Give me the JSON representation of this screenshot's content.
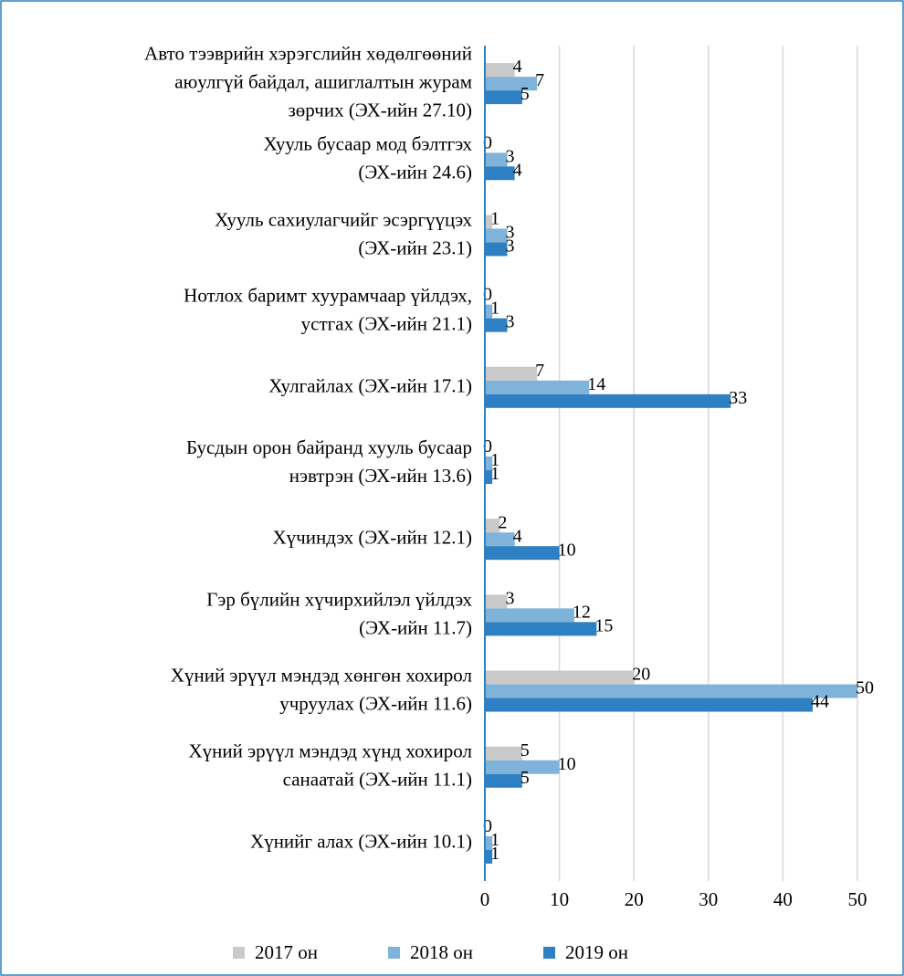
{
  "chart_data": {
    "type": "bar",
    "orientation": "horizontal",
    "categories": [
      "Авто тээврийн хэрэгслийн хөдөлгөөний\nаюулгүй байдал, ашиглалтын журам\nзөрчих (ЭХ-ийн 27.10)",
      "Хууль бусаар мод бэлтгэх\n(ЭХ-ийн 24.6)",
      "Хууль сахиулагчийг эсэргүүцэх\n(ЭХ-ийн 23.1)",
      "Нотлох баримт хуурамчаар үйлдэх,\nустгах (ЭХ-ийн 21.1)",
      "Хулгайлах (ЭХ-ийн 17.1)",
      "Бусдын орон байранд хууль бусаар\nнэвтрэн (ЭХ-ийн 13.6)",
      "Хүчиндэх (ЭХ-ийн 12.1)",
      "Гэр бүлийн хүчирхийлэл үйлдэх\n(ЭХ-ийн 11.7)",
      "Хүний эрүүл мэндэд хөнгөн хохирол\nучруулах (ЭХ-ийн 11.6)",
      "Хүний эрүүл мэндэд хүнд хохирол\nсанаатай (ЭХ-ийн 11.1)",
      "Хүнийг алах (ЭХ-ийн 10.1)"
    ],
    "series": [
      {
        "name": "2017 он",
        "color": "#c9c9c9",
        "values": [
          4,
          0,
          1,
          0,
          7,
          0,
          2,
          3,
          20,
          5,
          0
        ]
      },
      {
        "name": "2018 он",
        "color": "#80b3da",
        "values": [
          7,
          3,
          3,
          1,
          14,
          1,
          4,
          12,
          50,
          10,
          1
        ]
      },
      {
        "name": "2019 он",
        "color": "#2f80c2",
        "values": [
          5,
          4,
          3,
          3,
          33,
          1,
          10,
          15,
          44,
          5,
          1
        ]
      }
    ],
    "xlim": [
      0,
      50
    ],
    "xticks": [
      0,
      10,
      20,
      30,
      40,
      50
    ],
    "grid": true,
    "legend": "bottom"
  }
}
